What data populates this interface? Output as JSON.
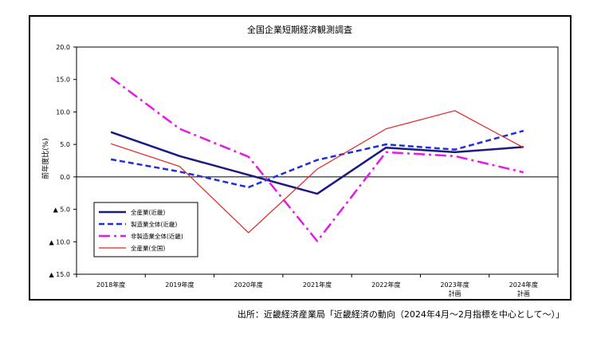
{
  "chart_data": {
    "type": "line",
    "title": "全国企業短期経済観測調査",
    "ylabel": "前年度比(%)",
    "xlabel": "",
    "ylim": [
      -15,
      20
    ],
    "yticks": [
      20,
      15,
      10,
      5,
      0,
      -5,
      -10,
      -15
    ],
    "ytick_labels": [
      "20.0",
      "15.0",
      "10.0",
      "5.0",
      "0.0",
      "▲ 5.0",
      "▲ 10.0",
      "▲ 15.0"
    ],
    "categories": [
      [
        "2018年度"
      ],
      [
        "2019年度"
      ],
      [
        "2020年度"
      ],
      [
        "2021年度"
      ],
      [
        "2022年度"
      ],
      [
        "2023年度",
        "計画"
      ],
      [
        "2024年度",
        "計画"
      ]
    ],
    "series": [
      {
        "name": "全産業(近畿)",
        "color": "#1a1a80",
        "dash": "solid",
        "width": 2.5,
        "values": [
          6.9,
          3.2,
          0.3,
          -2.6,
          4.5,
          3.8,
          4.6
        ]
      },
      {
        "name": "製造業全体(近畿)",
        "color": "#1e2ee0",
        "dash": "dashed",
        "width": 2.5,
        "values": [
          2.7,
          0.8,
          -1.6,
          2.6,
          5.0,
          4.2,
          7.1
        ]
      },
      {
        "name": "非製造業全体(近畿)",
        "color": "#e619e6",
        "dash": "dashdot",
        "width": 2.5,
        "values": [
          15.3,
          7.4,
          3.1,
          -9.9,
          3.8,
          3.2,
          0.7
        ]
      },
      {
        "name": "全産業(全国)",
        "color": "#e62020",
        "dash": "solid",
        "width": 1.2,
        "values": [
          5.1,
          1.6,
          -8.6,
          1.2,
          7.4,
          10.2,
          4.5
        ]
      }
    ],
    "legend_position": "lower-left",
    "grid": false
  },
  "source_note": "出所：近畿経済産業局「近畿経済の動向（2024年4月〜2月指標を中心として〜）」"
}
